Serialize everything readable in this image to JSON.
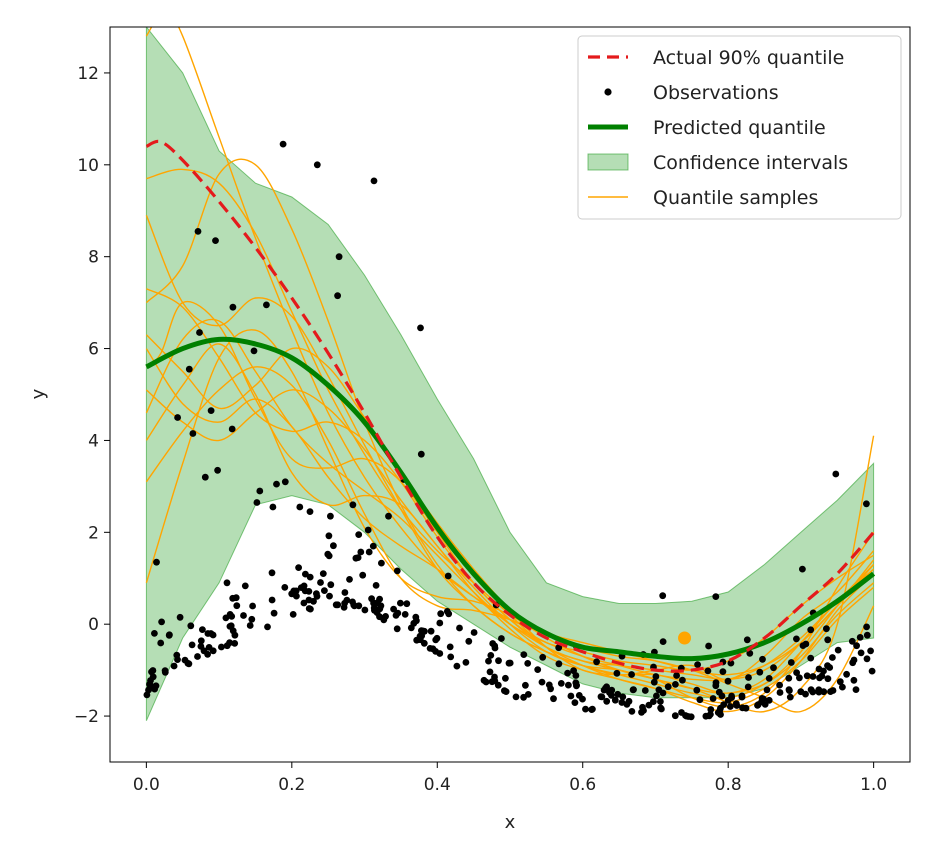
{
  "chart_data": {
    "type": "line",
    "title": "",
    "xlabel": "x",
    "ylabel": "y",
    "xlim": [
      -0.05,
      1.05
    ],
    "ylim": [
      -3,
      13
    ],
    "xticks": [
      0.0,
      0.2,
      0.4,
      0.6,
      0.8,
      1.0
    ],
    "xtick_labels": [
      "0.0",
      "0.2",
      "0.4",
      "0.6",
      "0.8",
      "1.0"
    ],
    "yticks": [
      -2,
      0,
      2,
      4,
      6,
      8,
      10,
      12
    ],
    "ytick_labels": [
      "−2",
      "0",
      "2",
      "4",
      "6",
      "8",
      "10",
      "12"
    ],
    "grid": false,
    "legend_position": "top-right",
    "colors": {
      "actual": "#e41a1c",
      "predicted": "#008000",
      "band": "#2ca02c",
      "samples": "#ffa500",
      "observations": "#000000"
    },
    "legend": [
      {
        "label": "Actual 90% quantile",
        "kind": "dashed",
        "color": "#e41a1c"
      },
      {
        "label": "Observations",
        "kind": "dot",
        "color": "#000000"
      },
      {
        "label": "Predicted quantile",
        "kind": "thick",
        "color": "#008000"
      },
      {
        "label": "Confidence intervals",
        "kind": "patch",
        "color": "#2ca02c"
      },
      {
        "label": "Quantile samples",
        "kind": "thin",
        "color": "#ffa500"
      }
    ],
    "actual_quantile": {
      "x": [
        0.0,
        0.02,
        0.05,
        0.1,
        0.15,
        0.2,
        0.25,
        0.3,
        0.35,
        0.4,
        0.45,
        0.5,
        0.55,
        0.6,
        0.65,
        0.7,
        0.75,
        0.8,
        0.85,
        0.9,
        0.95,
        1.0
      ],
      "y": [
        10.4,
        10.5,
        10.1,
        9.2,
        8.2,
        7.1,
        5.9,
        4.6,
        3.2,
        1.9,
        0.9,
        0.2,
        -0.3,
        -0.6,
        -0.85,
        -1.0,
        -1.0,
        -0.8,
        -0.3,
        0.4,
        1.1,
        2.0
      ]
    },
    "predicted_quantile": {
      "x": [
        0.0,
        0.05,
        0.1,
        0.15,
        0.2,
        0.25,
        0.3,
        0.35,
        0.4,
        0.45,
        0.5,
        0.55,
        0.6,
        0.65,
        0.7,
        0.75,
        0.8,
        0.85,
        0.9,
        0.95,
        1.0
      ],
      "y": [
        5.6,
        6.0,
        6.2,
        6.1,
        5.8,
        5.2,
        4.4,
        3.3,
        2.1,
        1.1,
        0.3,
        -0.2,
        -0.5,
        -0.6,
        -0.7,
        -0.75,
        -0.65,
        -0.4,
        0.0,
        0.5,
        1.1
      ]
    },
    "confidence_band": {
      "x": [
        0.0,
        0.05,
        0.1,
        0.15,
        0.2,
        0.25,
        0.3,
        0.35,
        0.4,
        0.45,
        0.5,
        0.55,
        0.6,
        0.65,
        0.7,
        0.75,
        0.8,
        0.85,
        0.9,
        0.95,
        1.0
      ],
      "upper": [
        13.0,
        12.0,
        10.3,
        9.6,
        9.3,
        8.7,
        7.6,
        6.3,
        4.9,
        3.6,
        2.0,
        0.9,
        0.6,
        0.45,
        0.45,
        0.5,
        0.7,
        1.3,
        2.0,
        2.7,
        3.5
      ],
      "lower": [
        -2.1,
        -0.3,
        0.9,
        2.6,
        2.8,
        2.6,
        2.0,
        1.2,
        0.5,
        0.0,
        -0.5,
        -0.9,
        -1.3,
        -1.5,
        -1.6,
        -1.6,
        -1.6,
        -1.4,
        -0.9,
        -0.4,
        -0.3
      ]
    },
    "quantile_samples": [
      {
        "x": [
          0.0,
          0.05,
          0.1,
          0.15,
          0.2,
          0.25,
          0.3,
          0.35,
          0.4,
          0.45,
          0.5,
          0.55,
          0.6,
          0.65,
          0.7,
          0.75,
          0.8,
          0.85,
          0.9,
          0.95,
          1.0
        ],
        "y": [
          9.7,
          9.9,
          9.6,
          8.5,
          6.8,
          5.1,
          3.7,
          2.5,
          1.6,
          0.9,
          0.2,
          -0.5,
          -0.8,
          -1.0,
          -1.2,
          -1.6,
          -1.8,
          -1.5,
          -0.6,
          0.8,
          2.0
        ]
      },
      {
        "x": [
          0.0,
          0.05,
          0.1,
          0.15,
          0.2,
          0.25,
          0.3,
          0.35,
          0.4,
          0.45,
          0.5,
          0.55,
          0.6,
          0.65,
          0.7,
          0.75,
          0.8,
          0.85,
          0.9,
          0.95,
          1.0
        ],
        "y": [
          8.9,
          7.0,
          6.5,
          7.1,
          6.7,
          5.4,
          3.9,
          2.5,
          1.2,
          0.4,
          -0.2,
          -0.6,
          -0.9,
          -1.1,
          -1.0,
          -0.9,
          -1.2,
          -0.7,
          0.1,
          0.7,
          1.6
        ]
      },
      {
        "x": [
          0.0,
          0.05,
          0.1,
          0.15,
          0.2,
          0.25,
          0.3,
          0.35,
          0.4,
          0.45,
          0.5,
          0.55,
          0.6,
          0.65,
          0.7,
          0.75,
          0.8,
          0.85,
          0.9,
          0.95,
          1.0
        ],
        "y": [
          7.3,
          6.9,
          5.8,
          4.6,
          4.2,
          4.4,
          4.0,
          3.1,
          1.9,
          0.9,
          0.1,
          -0.4,
          -0.6,
          -0.8,
          -0.9,
          -1.0,
          -0.8,
          -0.3,
          0.4,
          1.0,
          1.5
        ]
      },
      {
        "x": [
          0.0,
          0.05,
          0.1,
          0.15,
          0.2,
          0.25,
          0.3,
          0.35,
          0.4,
          0.45,
          0.5,
          0.55,
          0.6,
          0.65,
          0.7,
          0.75,
          0.8,
          0.85,
          0.9,
          0.95,
          1.0
        ],
        "y": [
          6.3,
          5.5,
          4.7,
          5.2,
          6.0,
          5.6,
          4.5,
          3.3,
          2.2,
          1.2,
          0.3,
          -0.5,
          -1.0,
          -1.1,
          -1.1,
          -1.3,
          -1.5,
          -1.2,
          -0.4,
          0.5,
          1.2
        ]
      },
      {
        "x": [
          0.0,
          0.05,
          0.1,
          0.15,
          0.2,
          0.25,
          0.3,
          0.35,
          0.4,
          0.45,
          0.5,
          0.55,
          0.6,
          0.65,
          0.7,
          0.75,
          0.8,
          0.85,
          0.9,
          0.95,
          1.0
        ],
        "y": [
          5.1,
          4.4,
          4.0,
          4.6,
          5.1,
          4.7,
          3.8,
          2.7,
          1.7,
          0.8,
          0.0,
          -0.6,
          -0.9,
          -1.0,
          -1.2,
          -1.4,
          -1.5,
          -1.3,
          -0.7,
          0.2,
          0.9
        ]
      },
      {
        "x": [
          0.0,
          0.05,
          0.1,
          0.15,
          0.2,
          0.25,
          0.3,
          0.35,
          0.4,
          0.45,
          0.5,
          0.55,
          0.6,
          0.65,
          0.7,
          0.75,
          0.8,
          0.85,
          0.9,
          0.95,
          1.0
        ],
        "y": [
          4.0,
          5.2,
          6.1,
          5.0,
          3.3,
          2.6,
          2.8,
          2.6,
          1.7,
          0.7,
          -0.1,
          -0.7,
          -1.0,
          -1.2,
          -1.4,
          -1.7,
          -1.9,
          -1.6,
          -0.8,
          0.3,
          1.1
        ]
      },
      {
        "x": [
          0.0,
          0.05,
          0.1,
          0.15,
          0.2,
          0.25,
          0.3,
          0.35,
          0.4,
          0.45,
          0.5,
          0.55,
          0.6,
          0.65,
          0.7,
          0.75,
          0.8,
          0.85,
          0.9,
          0.95,
          1.0
        ],
        "y": [
          3.1,
          4.2,
          5.1,
          5.6,
          5.2,
          4.0,
          2.4,
          1.0,
          0.4,
          0.3,
          0.1,
          -0.2,
          -0.5,
          -0.7,
          -0.8,
          -1.0,
          -1.3,
          -1.6,
          -1.9,
          -1.2,
          0.4
        ]
      },
      {
        "x": [
          0.0,
          0.05,
          0.1,
          0.15,
          0.2,
          0.25,
          0.3,
          0.35,
          0.4,
          0.45,
          0.5,
          0.55,
          0.6,
          0.65,
          0.7,
          0.75,
          0.8,
          0.85,
          0.9,
          0.95,
          1.0
        ],
        "y": [
          0.9,
          3.5,
          5.8,
          6.4,
          5.5,
          3.8,
          2.1,
          1.0,
          0.6,
          0.5,
          0.2,
          -0.3,
          -0.7,
          -1.0,
          -1.2,
          -1.4,
          -1.7,
          -1.9,
          -1.4,
          0.0,
          4.1
        ]
      },
      {
        "x": [
          0.0,
          0.02,
          0.05,
          0.1,
          0.15,
          0.2,
          0.25,
          0.3,
          0.35,
          0.4,
          0.45,
          0.5,
          0.55,
          0.6,
          0.65,
          0.7,
          0.75,
          0.8,
          0.85,
          0.9,
          0.95,
          1.0
        ],
        "y": [
          5.6,
          5.9,
          7.0,
          6.5,
          4.9,
          3.6,
          3.4,
          3.6,
          3.1,
          2.0,
          0.9,
          0.1,
          -0.5,
          -0.9,
          -1.2,
          -1.4,
          -1.6,
          -1.7,
          -1.4,
          -0.8,
          0.1,
          0.8
        ]
      },
      {
        "x": [
          0.0,
          0.01,
          0.02,
          0.05,
          0.1,
          0.15,
          0.2,
          0.25,
          0.3,
          0.35,
          0.4,
          0.45,
          0.5,
          0.55,
          0.6,
          0.65,
          0.7,
          0.75,
          0.8,
          0.85,
          0.9,
          0.95,
          1.0
        ],
        "y": [
          12.8,
          13.1,
          13.6,
          12.8,
          10.6,
          8.4,
          6.4,
          4.6,
          3.2,
          2.1,
          1.2,
          0.6,
          0.1,
          -0.2,
          -0.4,
          -0.6,
          -0.8,
          -1.0,
          -1.1,
          -0.9,
          -0.4,
          0.4,
          1.3
        ]
      },
      {
        "x": [
          0.0,
          0.05,
          0.1,
          0.15,
          0.2,
          0.25,
          0.3,
          0.35,
          0.4,
          0.45,
          0.5,
          0.55,
          0.6,
          0.65,
          0.7,
          0.75,
          0.8,
          0.85,
          0.9,
          0.95,
          1.0
        ],
        "y": [
          7.0,
          7.8,
          9.8,
          10.0,
          8.6,
          6.6,
          4.4,
          2.6,
          1.3,
          0.4,
          -0.2,
          -0.6,
          -0.9,
          -1.1,
          -1.3,
          -1.5,
          -1.6,
          -1.3,
          -0.6,
          0.4,
          1.4
        ]
      },
      {
        "x": [
          0.0,
          0.05,
          0.1,
          0.15,
          0.2,
          0.25,
          0.3,
          0.35,
          0.4,
          0.45,
          0.5,
          0.55,
          0.6,
          0.65,
          0.7,
          0.75,
          0.8,
          0.85,
          0.9,
          0.95,
          1.0
        ],
        "y": [
          6.0,
          4.8,
          4.4,
          4.9,
          4.3,
          3.2,
          2.3,
          1.7,
          1.2,
          0.6,
          0.0,
          -0.5,
          -0.8,
          -0.9,
          -1.0,
          -1.1,
          -1.2,
          -1.0,
          -0.4,
          0.4,
          1.2
        ]
      },
      {
        "x": [
          0.0,
          0.05,
          0.1,
          0.15,
          0.2,
          0.25,
          0.3,
          0.35,
          0.4,
          0.45,
          0.5,
          0.55,
          0.6,
          0.65,
          0.7,
          0.75,
          0.8,
          0.85,
          0.9,
          0.95,
          1.0
        ],
        "y": [
          4.6,
          6.2,
          6.6,
          5.5,
          4.3,
          3.5,
          2.9,
          2.3,
          1.5,
          0.7,
          0.0,
          -0.4,
          -0.7,
          -0.9,
          -1.1,
          -1.2,
          -1.2,
          -0.9,
          -0.3,
          0.5,
          1.3
        ]
      }
    ],
    "highlight_point": {
      "x": 0.74,
      "y": -0.3
    },
    "observations": {
      "x": [
        0.188,
        0.235,
        0.313,
        0.265,
        0.377,
        0.948,
        0.071,
        0.095,
        0.263,
        0.165,
        0.119,
        0.073,
        0.148,
        0.059,
        0.043,
        0.089,
        0.118,
        0.064,
        0.098,
        0.081,
        0.156,
        0.179,
        0.191,
        0.211,
        0.225,
        0.253,
        0.284,
        0.305,
        0.333,
        0.354,
        0.378,
        0.415,
        0.71,
        0.783,
        0.902,
        0.99,
        0.021,
        0.011,
        0.014,
        0.152,
        0.174,
        0.292,
        0.312
      ],
      "y": [
        10.45,
        10.0,
        9.65,
        8.0,
        6.45,
        3.27,
        8.55,
        8.35,
        7.15,
        6.95,
        6.9,
        6.35,
        5.95,
        5.55,
        4.5,
        4.65,
        4.25,
        4.15,
        3.35,
        3.2,
        2.9,
        3.05,
        3.1,
        2.55,
        2.45,
        2.35,
        2.6,
        2.05,
        2.35,
        3.15,
        3.7,
        1.05,
        0.62,
        0.6,
        1.2,
        2.62,
        0.05,
        -0.2,
        1.35,
        2.65,
        2.55,
        1.95,
        1.7
      ]
    }
  }
}
